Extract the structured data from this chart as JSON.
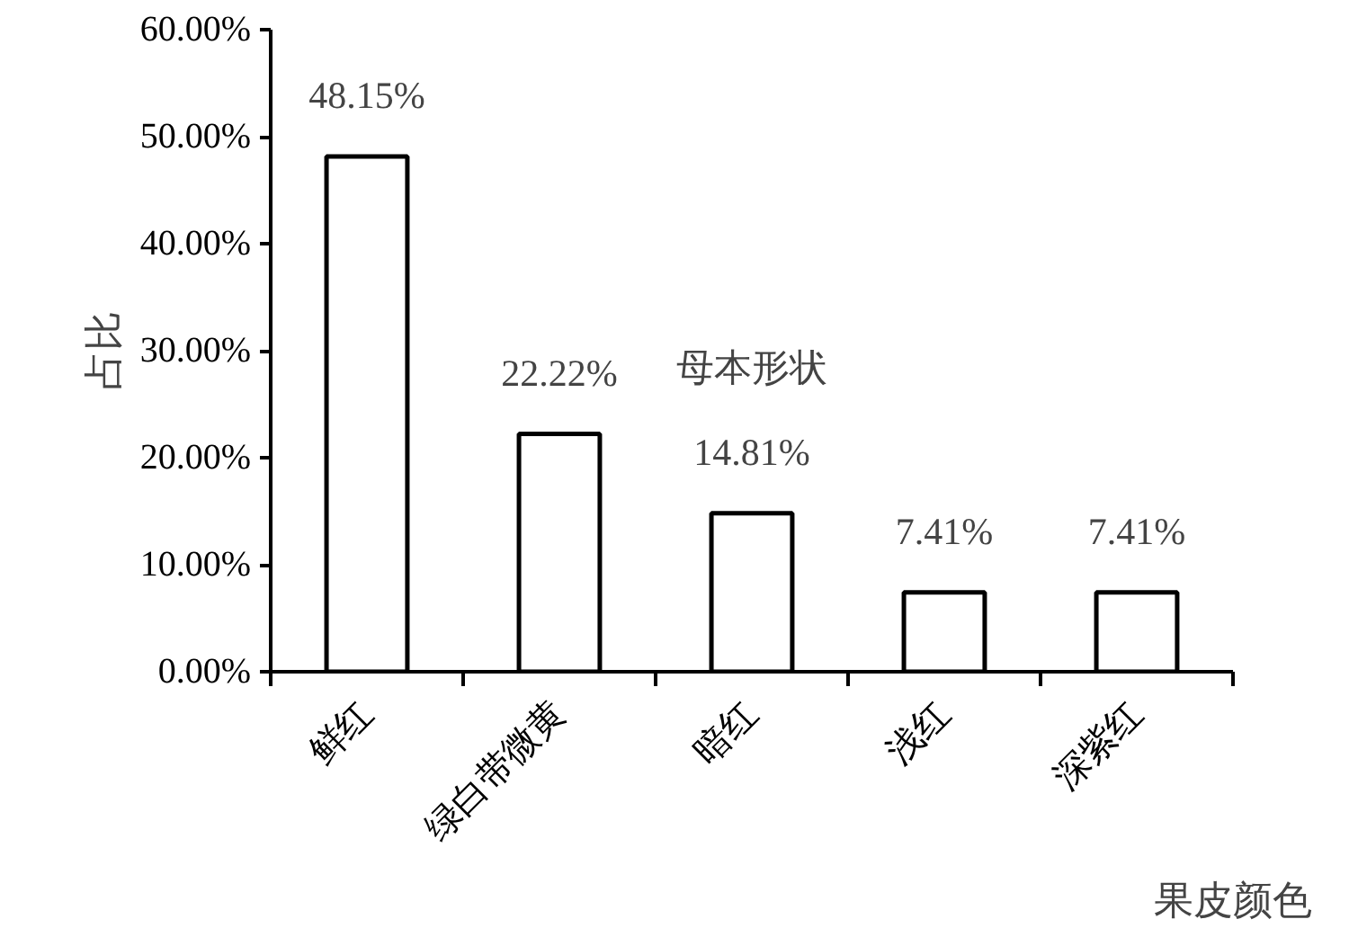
{
  "chart_data": {
    "type": "bar",
    "categories": [
      "鲜红",
      "绿白带微黄",
      "暗红",
      "浅红",
      "深紫红"
    ],
    "values": [
      48.15,
      22.22,
      14.81,
      7.41,
      7.41
    ],
    "value_labels": [
      "48.15%",
      "22.22%",
      "14.81%",
      "7.41%",
      "7.41%"
    ],
    "color": "#ffffff",
    "xlabel": "果皮颜色",
    "ylabel": "占比",
    "annotations": [
      "母本形状"
    ],
    "ylim": [
      0,
      60
    ],
    "yticks": [
      {
        "value": 0,
        "label": "0.00%"
      },
      {
        "value": 10,
        "label": "10.00%"
      },
      {
        "value": 20,
        "label": "20.00%"
      },
      {
        "value": 30,
        "label": "30.00%"
      },
      {
        "value": 40,
        "label": "40.00%"
      },
      {
        "value": 50,
        "label": "50.00%"
      },
      {
        "value": 60,
        "label": "60.00%"
      }
    ],
    "grid": false
  }
}
